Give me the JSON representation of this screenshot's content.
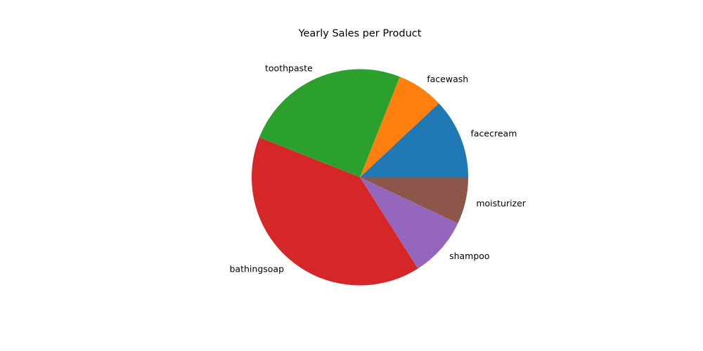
{
  "chart_data": {
    "type": "pie",
    "title": "Yearly Sales per Product",
    "start_angle_deg": 0,
    "direction": "counterclockwise",
    "slices": [
      {
        "label": "facecream",
        "value": 12,
        "color": "#1f77b4"
      },
      {
        "label": "facewash",
        "value": 7,
        "color": "#ff7f0e"
      },
      {
        "label": "toothpaste",
        "value": 25,
        "color": "#2ca02c"
      },
      {
        "label": "bathingsoap",
        "value": 40,
        "color": "#d62728"
      },
      {
        "label": "shampoo",
        "value": 9,
        "color": "#9467bd"
      },
      {
        "label": "moisturizer",
        "value": 7,
        "color": "#8c564b"
      }
    ]
  }
}
